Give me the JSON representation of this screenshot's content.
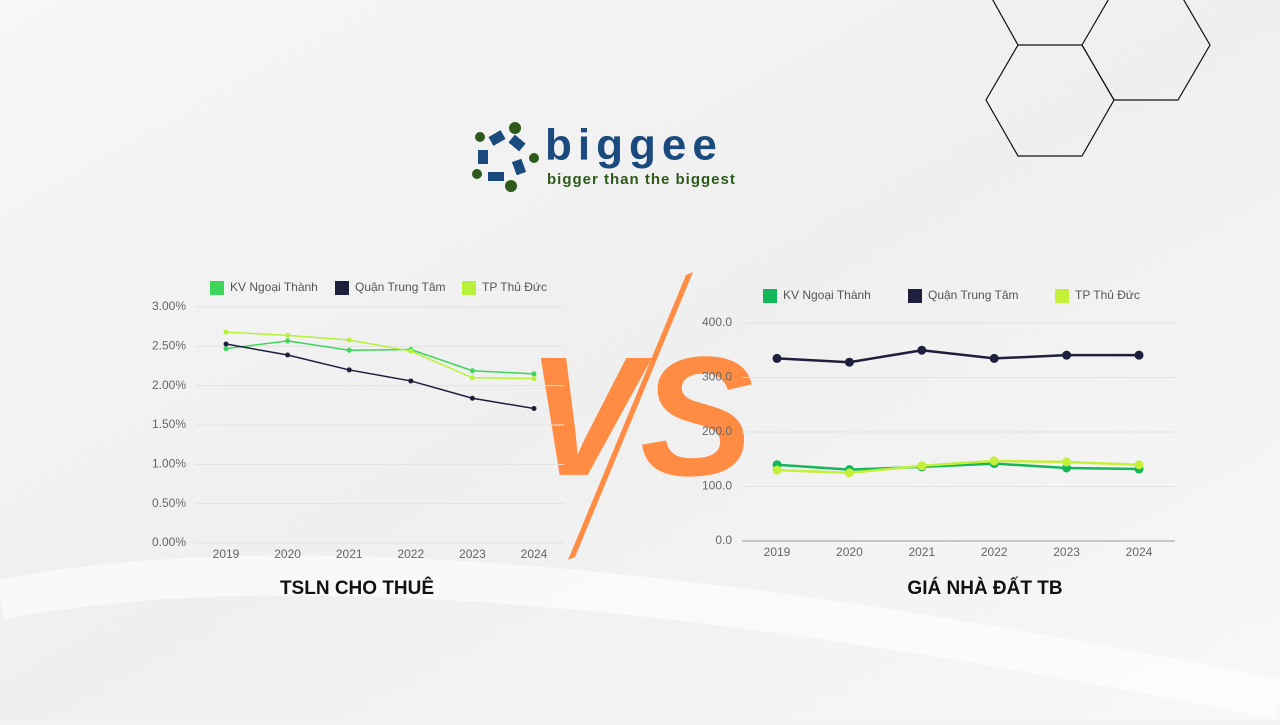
{
  "logo": {
    "name": "biggee",
    "tagline": "bigger than the biggest"
  },
  "vs": "VS",
  "chart_data": [
    {
      "type": "line",
      "title": "TSLN CHO THUÊ",
      "categories": [
        "2019",
        "2020",
        "2021",
        "2022",
        "2023",
        "2024"
      ],
      "series": [
        {
          "name": "KV Ngoại Thành",
          "color": "#3dd65a",
          "values": [
            2.47,
            2.57,
            2.45,
            2.46,
            2.19,
            2.15
          ]
        },
        {
          "name": "Quận Trung Tâm",
          "color": "#1e1f3d",
          "values": [
            2.53,
            2.39,
            2.2,
            2.06,
            1.84,
            1.71
          ]
        },
        {
          "name": "TP Thủ Đức",
          "color": "#b8f13a",
          "values": [
            2.68,
            2.64,
            2.58,
            2.44,
            2.1,
            2.09
          ]
        }
      ],
      "ylim": [
        0,
        3
      ],
      "yticks": [
        {
          "value": 0,
          "label": "0.00%"
        },
        {
          "value": 0.5,
          "label": "0.50%"
        },
        {
          "value": 1,
          "label": "1.00%"
        },
        {
          "value": 1.5,
          "label": "1.50%"
        },
        {
          "value": 2,
          "label": "2.00%"
        },
        {
          "value": 2.5,
          "label": "2.50%"
        },
        {
          "value": 3,
          "label": "3.00%"
        }
      ],
      "grid": true,
      "legend": "top"
    },
    {
      "type": "line",
      "title": "GIÁ NHÀ ĐẤT TB",
      "categories": [
        "2019",
        "2020",
        "2021",
        "2022",
        "2023",
        "2024"
      ],
      "series": [
        {
          "name": "KV Ngoại Thành",
          "color": "#14b85a",
          "values": [
            140,
            131,
            136,
            142,
            134,
            132
          ]
        },
        {
          "name": "Quận Trung Tâm",
          "color": "#1e1f3d",
          "values": [
            335,
            328,
            350,
            335,
            341,
            341
          ]
        },
        {
          "name": "TP Thủ Đức",
          "color": "#c5f03a",
          "values": [
            130,
            125,
            138,
            147,
            145,
            140
          ]
        }
      ],
      "ylim": [
        0,
        400
      ],
      "yticks": [
        {
          "value": 0,
          "label": "0.0"
        },
        {
          "value": 100,
          "label": "100.0"
        },
        {
          "value": 200,
          "label": "200.0"
        },
        {
          "value": 300,
          "label": "300.0"
        },
        {
          "value": 400,
          "label": "400.0"
        }
      ],
      "grid": true,
      "legend": "top"
    }
  ]
}
